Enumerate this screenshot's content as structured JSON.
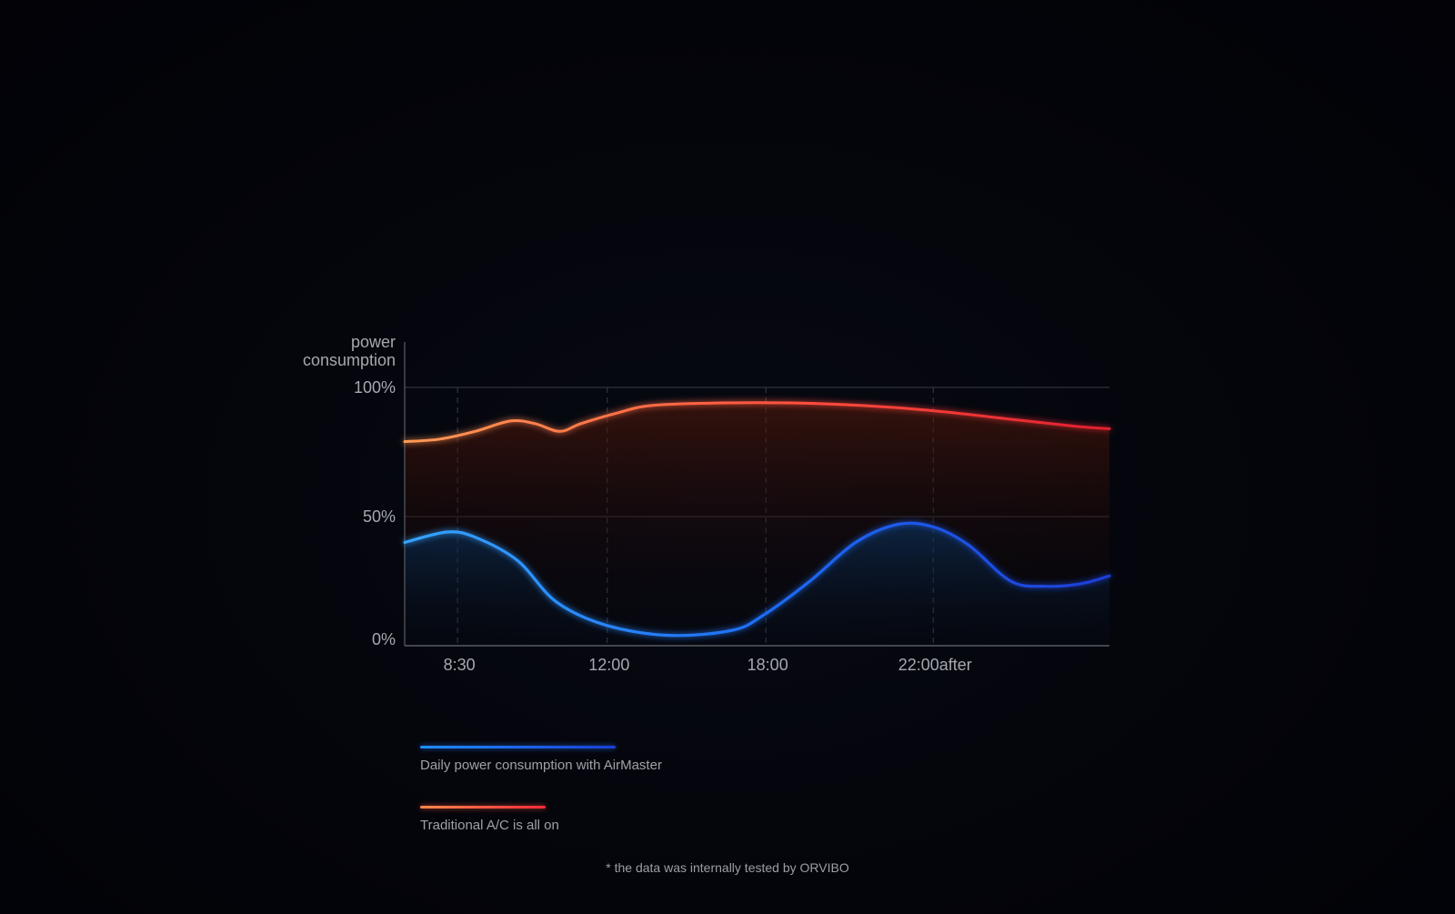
{
  "chart_data": {
    "type": "line",
    "title": "",
    "ylabel_lines": [
      "power",
      "consumption"
    ],
    "xlabel": "",
    "ylim": [
      0,
      100
    ],
    "y_ticks": [
      {
        "value": 0,
        "label": "0%"
      },
      {
        "value": 50,
        "label": "50%"
      },
      {
        "value": 100,
        "label": "100%"
      }
    ],
    "xlim": [
      7,
      27
    ],
    "x_ticks": [
      {
        "value": 8.5,
        "label": "8:30"
      },
      {
        "value": 12.75,
        "label": "12:00"
      },
      {
        "value": 17.25,
        "label": "18:00"
      },
      {
        "value": 22,
        "label": "22:00after"
      }
    ],
    "grid": "dashed vertical at ticks, solid horizontal at 50% and 100%",
    "legend_position": "bottom-left",
    "series": [
      {
        "name": "Daily power consumption with AirMaster",
        "color_start": "#2a9bff",
        "color_end": "#1f3fe0",
        "x": [
          7.0,
          8.2,
          9.0,
          10.2,
          11.3,
          12.7,
          14.5,
          16.3,
          17.2,
          18.5,
          19.8,
          21.0,
          22.0,
          23.0,
          24.2,
          25.2,
          26.2,
          27.0
        ],
        "y": [
          40,
          44,
          42,
          33,
          17,
          8,
          4,
          6,
          12,
          25,
          40,
          47,
          46,
          39,
          25,
          23,
          24,
          27
        ]
      },
      {
        "name": "Traditional A/C is all on",
        "color_start": "#ff8a4a",
        "color_end": "#ff2a3a",
        "x": [
          7.0,
          8.0,
          9.0,
          10.0,
          10.7,
          11.4,
          12.0,
          13.0,
          14.0,
          16.0,
          18.0,
          20.0,
          22.0,
          24.0,
          26.0,
          27.0
        ],
        "y": [
          79,
          80,
          83,
          87,
          86,
          83,
          86,
          90,
          93,
          94,
          94,
          93,
          91,
          88,
          85,
          84
        ]
      }
    ]
  },
  "legend": {
    "blue_label": "Daily power consumption with AirMaster",
    "red_label": "Traditional A/C is all on"
  },
  "footnote": "* the data was internally tested by ORVIBO"
}
